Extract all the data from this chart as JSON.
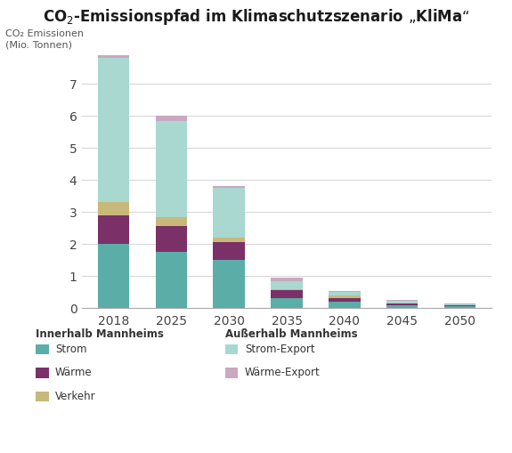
{
  "title": "CO₂-Emissionspfad im Klimaschutzszenario „KliMa“",
  "ylabel_line1": "CO₂ Emissionen",
  "ylabel_line2": "(Mio. Tonnen)",
  "years": [
    2018,
    2025,
    2030,
    2035,
    2040,
    2045,
    2050
  ],
  "strom": [
    2.0,
    1.75,
    1.5,
    0.3,
    0.2,
    0.08,
    0.05
  ],
  "waerme": [
    0.9,
    0.8,
    0.55,
    0.25,
    0.12,
    0.05,
    0.03
  ],
  "verkehr": [
    0.4,
    0.3,
    0.15,
    0.05,
    0.08,
    0.02,
    0.01
  ],
  "strom_export": [
    4.5,
    3.0,
    1.55,
    0.25,
    0.1,
    0.07,
    0.03
  ],
  "waerme_export": [
    0.1,
    0.15,
    0.05,
    0.1,
    0.03,
    0.02,
    0.02
  ],
  "color_strom": "#5BADA8",
  "color_waerme": "#7B3068",
  "color_verkehr": "#C8B87A",
  "color_strom_export": "#A8D8D0",
  "color_waerme_export": "#C9A8C0",
  "ylim": [
    0,
    8.2
  ],
  "yticks": [
    0,
    1,
    2,
    3,
    4,
    5,
    6,
    7
  ],
  "background_color": "#ffffff",
  "grid_color": "#d8d8d8",
  "bar_width": 0.55,
  "legend_innerhalb": "Innerhalb Mannheims",
  "legend_ausserhalb": "Außerhalb Mannheims",
  "legend_strom": "Strom",
  "legend_waerme": "Wärme",
  "legend_verkehr": "Verkehr",
  "legend_strom_export": "Strom-Export",
  "legend_waerme_export": "Wärme-Export"
}
